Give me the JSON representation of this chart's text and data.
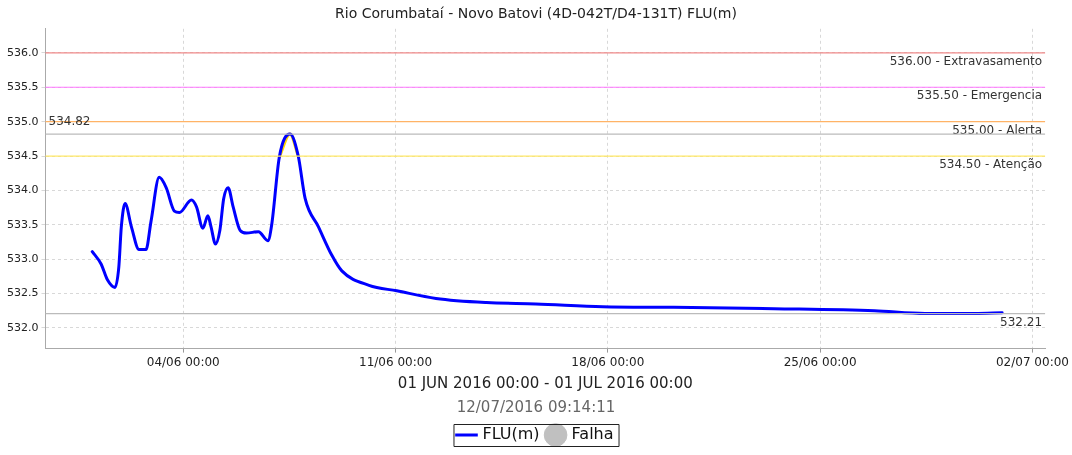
{
  "chart_data": {
    "type": "line",
    "title": "Rio Corumbataí - Novo Batovi (4D-042T/D4-131T) FLU(m)",
    "subtitle": "12/07/2016 09:14:11",
    "xlabel": "01 JUN 2016 00:00 - 01 JUL 2016 00:00",
    "x": [
      "2016-06-01T00:00",
      "2016-06-01T07:00",
      "2016-06-01T12:00",
      "2016-06-01T18:00",
      "2016-06-01T21:00",
      "2016-06-01T23:00",
      "2016-06-02T02:00",
      "2016-06-02T07:00",
      "2016-06-02T13:00",
      "2016-06-02T18:30",
      "2016-06-02T22:30",
      "2016-06-03T05:00",
      "2016-06-03T10:30",
      "2016-06-03T17:00",
      "2016-06-03T21:00",
      "2016-06-04T06:30",
      "2016-06-04T10:30",
      "2016-06-04T15:30",
      "2016-06-04T19:30",
      "2016-06-04T22:00",
      "2016-06-05T01:30",
      "2016-06-05T05:00",
      "2016-06-05T08:00",
      "2016-06-05T11:30",
      "2016-06-05T15:30",
      "2016-06-05T21:00",
      "2016-06-06T02:00",
      "2016-06-06T11:30",
      "2016-06-06T19:00",
      "2016-06-06T22:00",
      "2016-06-07T04:00",
      "2016-06-07T12:30",
      "2016-06-07T19:00",
      "2016-06-08T00:30",
      "2016-06-08T11:00",
      "2016-06-08T21:30",
      "2016-06-09T05:30",
      "2016-06-10T03:00",
      "2016-06-11T01:00",
      "2016-06-12T08:00",
      "2016-06-14T00:00",
      "2016-06-15T15:00",
      "2016-06-17T20:00",
      "2016-06-20T04:00",
      "2016-06-23T11:30",
      "2016-06-26T19:00",
      "2016-06-28T11:00",
      "2016-06-30T02:30",
      "2016-07-01T00:00"
    ],
    "series": [
      {
        "name": "FLU(m)",
        "color": "#0000ff",
        "values": [
          533.11,
          532.93,
          532.7,
          532.59,
          532.88,
          533.47,
          533.81,
          533.47,
          533.14,
          533.14,
          533.55,
          534.19,
          534.04,
          533.7,
          533.68,
          533.86,
          533.76,
          533.45,
          533.63,
          533.47,
          533.22,
          533.42,
          533.88,
          534.04,
          533.76,
          533.42,
          533.38,
          533.4,
          533.27,
          533.5,
          534.48,
          534.82,
          534.5,
          533.88,
          533.47,
          533.06,
          532.83,
          532.62,
          532.54,
          532.43,
          532.37,
          532.35,
          532.31,
          532.3,
          532.28,
          532.25,
          532.21,
          532.21,
          532.22
        ]
      },
      {
        "color": "#ffd700",
        "x": [
          "2016-06-07T04:00",
          "2016-06-07T12:30",
          "2016-06-07T19:00"
        ],
        "values": [
          534.48,
          534.82,
          534.5
        ]
      },
      {
        "name": "Falha",
        "type": "scatter",
        "color": "#c0c0c0",
        "marker": "circle",
        "values": [
          null,
          null,
          null,
          null,
          null,
          null,
          null,
          null,
          null,
          null,
          null,
          null,
          null,
          null,
          null,
          null,
          null,
          null,
          null,
          null,
          null,
          null,
          null,
          null,
          null,
          null,
          null,
          null,
          null,
          null,
          null,
          null,
          null,
          null,
          null,
          null,
          null,
          null,
          null,
          null,
          null,
          null,
          null,
          null,
          null,
          null,
          null,
          null,
          null
        ]
      }
    ],
    "xlim": [
      "2016-05-30T11:00",
      "2016-07-02T10:00"
    ],
    "xticks": [
      {
        "value": "2016-06-04T00:00",
        "label": "04/06 00:00"
      },
      {
        "value": "2016-06-11T00:00",
        "label": "11/06 00:00"
      },
      {
        "value": "2016-06-18T00:00",
        "label": "18/06 00:00"
      },
      {
        "value": "2016-06-25T00:00",
        "label": "25/06 00:00"
      },
      {
        "value": "2016-07-02T00:00",
        "label": "02/07 00:00"
      }
    ],
    "ylim": [
      531.7,
      536.35
    ],
    "yticks": [
      {
        "value": 532,
        "label": "532.0"
      },
      {
        "value": 532.5,
        "label": "532.5"
      },
      {
        "value": 533,
        "label": "533.0"
      },
      {
        "value": 533.5,
        "label": "533.5"
      },
      {
        "value": 534,
        "label": "534.0"
      },
      {
        "value": 534.5,
        "label": "534.5"
      },
      {
        "value": 535,
        "label": "535.0"
      },
      {
        "value": 535.5,
        "label": "535.5"
      },
      {
        "value": 536,
        "label": "536.0"
      }
    ],
    "ref_lines": [
      {
        "axis": "y",
        "value": 536.0,
        "label": "536.00 - Extravasamento",
        "color": "#f08a8a"
      },
      {
        "axis": "y",
        "value": 535.5,
        "label": "535.50 - Emergencia",
        "color": "#ff77ff"
      },
      {
        "axis": "y",
        "value": 535.0,
        "label": "535.00 - Alerta",
        "color": "#ffb366"
      },
      {
        "axis": "y",
        "value": 534.82,
        "label": "534.82",
        "color": "#bbbbbb"
      },
      {
        "axis": "y",
        "value": 534.5,
        "label": "534.50 - Atenção",
        "color": "#ffe866"
      },
      {
        "axis": "y",
        "value": 532.21,
        "label": "532.21",
        "color": "#bbbbbb"
      }
    ],
    "grid": true,
    "legend": "bottom",
    "line_style": "solid",
    "marker": "none"
  }
}
